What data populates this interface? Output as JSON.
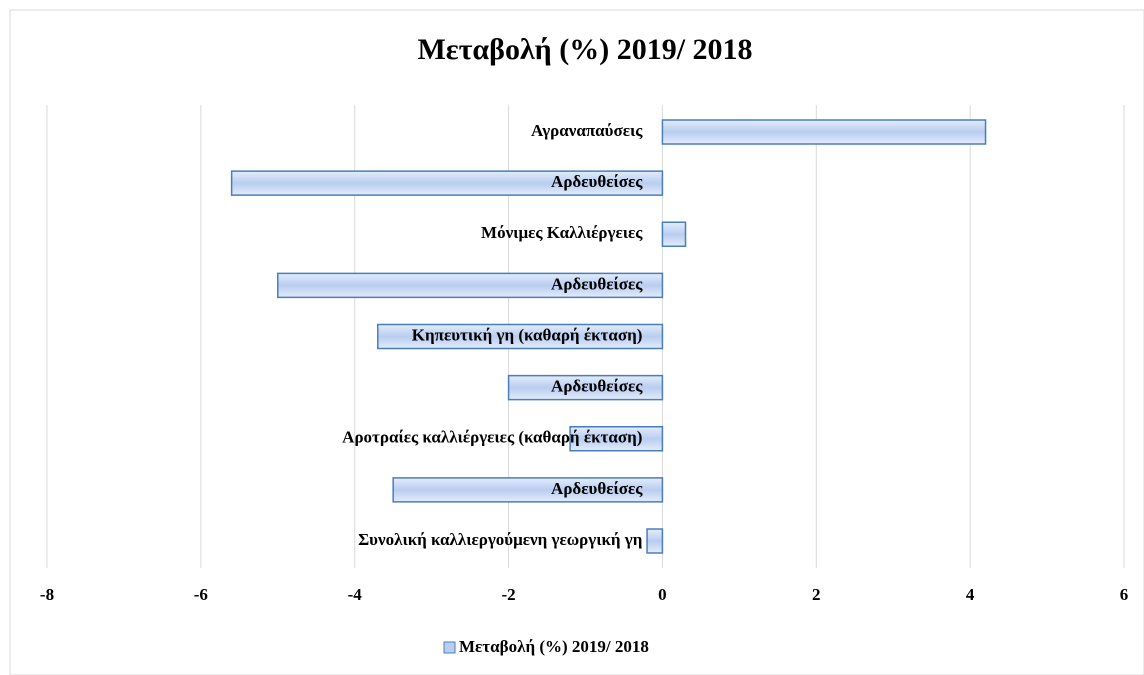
{
  "chart_data": {
    "type": "hbar",
    "title": "Μεταβολή (%) 2019/ 2018",
    "categories": [
      "Αγραναπαύσεις",
      "Αρδευθείσες",
      "Μόνιμες Καλλιέργειες",
      "Αρδευθείσες",
      "Κηπευτική γη (καθαρή έκταση)",
      "Αρδευθείσες",
      "Αροτραίες καλλιέργειες (καθαρή έκταση)",
      "Αρδευθείσες",
      "Συνολική καλλιεργούμενη γεωργική γη"
    ],
    "series": [
      {
        "name": "Μεταβολή (%) 2019/ 2018",
        "color": "#b9cdf0",
        "values": [
          4.2,
          -5.6,
          0.3,
          -5.0,
          -3.7,
          -2.0,
          -1.2,
          -3.5,
          -0.2
        ]
      }
    ],
    "xlim": [
      -8,
      6
    ],
    "xticks": [
      -8,
      -6,
      -4,
      -2,
      0,
      2,
      4,
      6
    ],
    "grid": true,
    "legend": "bottom"
  }
}
